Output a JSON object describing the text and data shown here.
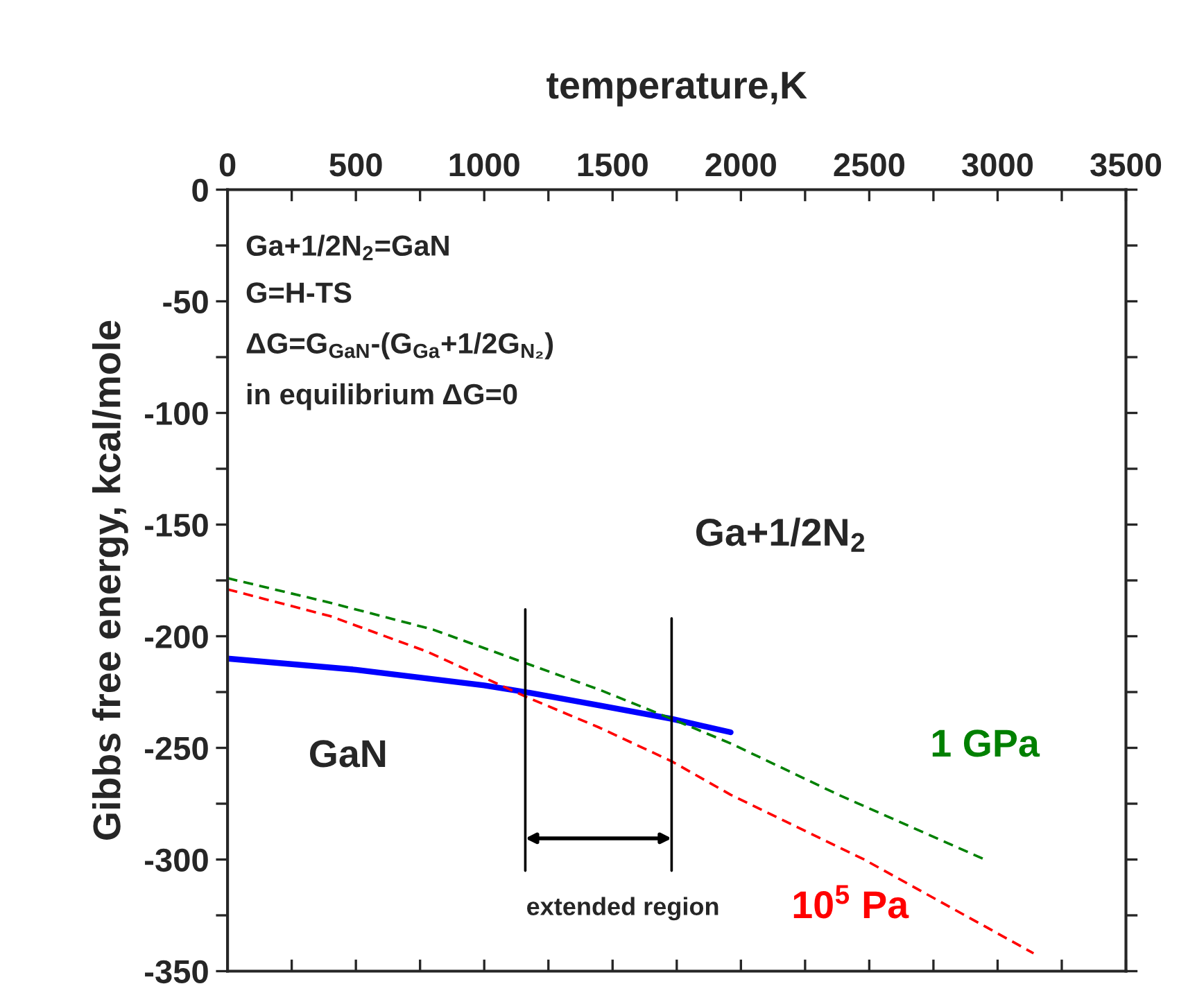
{
  "chart_data": {
    "type": "line",
    "xlabel": "temperature,K",
    "ylabel": "Gibbs free energy, kcal/mole",
    "xlim": [
      0,
      3500
    ],
    "ylim": [
      -350,
      0
    ],
    "xticks": [
      0,
      {
        "value": 250,
        "label": null
      },
      500,
      {
        "value": 750,
        "label": null
      },
      1000,
      {
        "value": 1250,
        "label": null
      },
      1500,
      {
        "value": 1750,
        "label": null
      },
      2000,
      {
        "value": 2250,
        "label": null
      },
      2500,
      {
        "value": 2750,
        "label": null
      },
      3000,
      {
        "value": 3250,
        "label": null
      },
      3500
    ],
    "yticks": [
      0,
      {
        "value": -25,
        "label": null
      },
      -50,
      {
        "value": -75,
        "label": null
      },
      -100,
      {
        "value": -125,
        "label": null
      },
      -150,
      {
        "value": -175,
        "label": null
      },
      -200,
      {
        "value": -225,
        "label": null
      },
      -250,
      {
        "value": -275,
        "label": null
      },
      -300,
      {
        "value": -325,
        "label": null
      },
      -350
    ],
    "grid": false,
    "legend": false,
    "series": [
      {
        "color": "#0000ff",
        "line_style": "solid",
        "x": [
          0,
          500,
          1000,
          1160,
          1450,
          1730,
          1960
        ],
        "values": [
          -210,
          -215,
          -222,
          -225,
          -231,
          -237,
          -243
        ]
      },
      {
        "name": "1 GPa",
        "color": "#008000",
        "line_style": "dashed",
        "x": [
          0,
          400,
          800,
          1160,
          1450,
          1730,
          1960,
          2380,
          2950
        ],
        "values": [
          -174,
          -185,
          -197,
          -212,
          -224,
          -237,
          -248,
          -271,
          -300
        ]
      },
      {
        "name": "10$^{5}$ Pa",
        "color": "#ff0000",
        "line_style": "dashed",
        "x": [
          0,
          400,
          780,
          1160,
          1450,
          1730,
          1960,
          2480,
          3140
        ],
        "values": [
          -179,
          -191,
          -207,
          -227,
          -241,
          -256,
          -271,
          -300,
          -342
        ]
      },
      {
        "color": "#000000",
        "line_style": "solid",
        "x": [
          1160,
          1160
        ],
        "values": [
          -188,
          -305
        ]
      },
      {
        "color": "#000000",
        "line_style": "solid",
        "x": [
          1730,
          1730
        ],
        "values": [
          -192,
          -305
        ]
      }
    ],
    "annotations": [
      "Ga+1/2N$_{2}$=GaN",
      "G=H-TS",
      "ΔG=G$_{GaN}$-(G$_{Ga}$+1/2G$_{N₂}$)",
      "in equilibrium ΔG=0",
      "Ga+1/2N$_{2}$",
      "GaN",
      "extended region"
    ]
  }
}
